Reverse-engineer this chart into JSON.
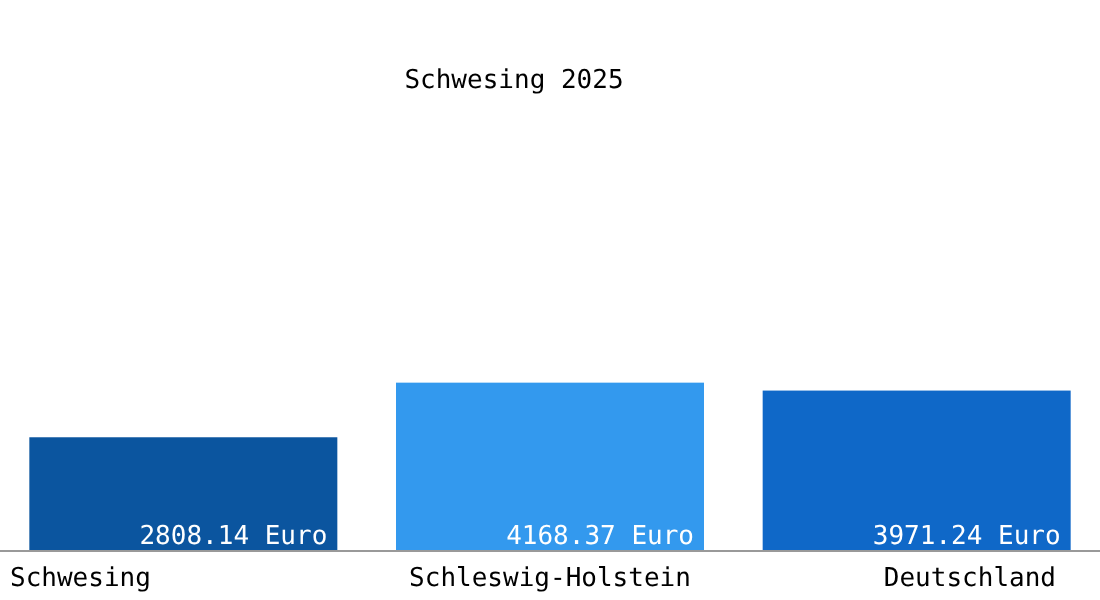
{
  "chart_data": {
    "type": "bar",
    "title": "Schwesing 2025",
    "categories": [
      "Schwesing",
      "Schleswig-Holstein",
      "Deutschland"
    ],
    "values": [
      2808.14,
      4168.37,
      3971.24
    ],
    "colors": [
      "#0b559f",
      "#3399ee",
      "#0f68c8"
    ],
    "value_labels": [
      "2808.14 Euro",
      "4168.37 Euro",
      "3971.24 Euro"
    ],
    "ylim": [
      0,
      13700
    ],
    "tick_labels": "x"
  }
}
